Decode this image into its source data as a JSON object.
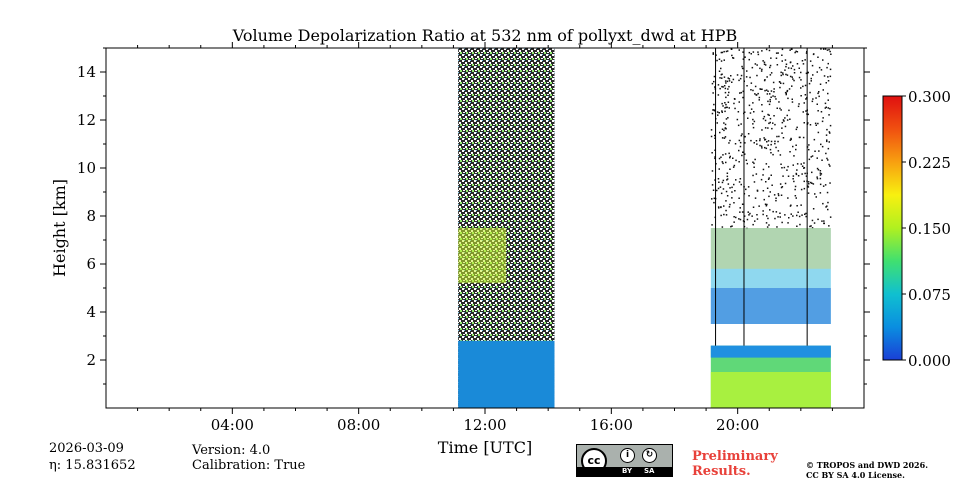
{
  "chart_data": {
    "type": "heatmap",
    "title": "Volume Depolarization Ratio at 532 nm of pollyxt_dwd at HPB",
    "xlabel": "Time [UTC]",
    "ylabel": "Height [km]",
    "xlim": [
      0,
      24
    ],
    "ylim": [
      0,
      15
    ],
    "x_ticks": [
      {
        "value": 4,
        "label": "04:00"
      },
      {
        "value": 8,
        "label": "08:00"
      },
      {
        "value": 12,
        "label": "12:00"
      },
      {
        "value": 16,
        "label": "16:00"
      },
      {
        "value": 20,
        "label": "20:00"
      }
    ],
    "y_ticks": [
      {
        "value": 2,
        "label": "2"
      },
      {
        "value": 4,
        "label": "4"
      },
      {
        "value": 6,
        "label": "6"
      },
      {
        "value": 8,
        "label": "8"
      },
      {
        "value": 10,
        "label": "10"
      },
      {
        "value": 12,
        "label": "12"
      },
      {
        "value": 14,
        "label": "14"
      }
    ],
    "colorbar": {
      "min": 0.0,
      "max": 0.3,
      "ticks": [
        {
          "value": 0.0,
          "label": "0.000"
        },
        {
          "value": 0.075,
          "label": "0.075"
        },
        {
          "value": 0.15,
          "label": "0.150"
        },
        {
          "value": 0.225,
          "label": "0.225"
        },
        {
          "value": 0.3,
          "label": "0.300"
        }
      ],
      "colors": [
        "#1a3fd6",
        "#0a8ee0",
        "#10c0d0",
        "#40e070",
        "#b0f020",
        "#f8f010",
        "#f8a010",
        "#f05010",
        "#e01010"
      ]
    },
    "measurement_periods": [
      {
        "start": 11.15,
        "end": 14.2,
        "boundary_layer_top": 2.8,
        "cloud_layer": [
          5.2,
          7.5
        ]
      },
      {
        "start": 19.15,
        "end": 22.95,
        "boundary_layer_top": 2.6,
        "cloud_layer": [
          3.5,
          7.5
        ]
      }
    ],
    "profile_marks": [
      19.3,
      20.2,
      22.2
    ]
  },
  "footer": {
    "date": "2026-03-09",
    "eta": "η: 15.831652",
    "version": "Version: 4.0",
    "calibration": "Calibration: True",
    "cc_label": "cc",
    "cc_by": "BY",
    "cc_sa": "SA",
    "preliminary": "Preliminary",
    "results": "Results.",
    "copyright": "© TROPOS and DWD 2026.",
    "license": "CC BY SA 4.0 License."
  }
}
